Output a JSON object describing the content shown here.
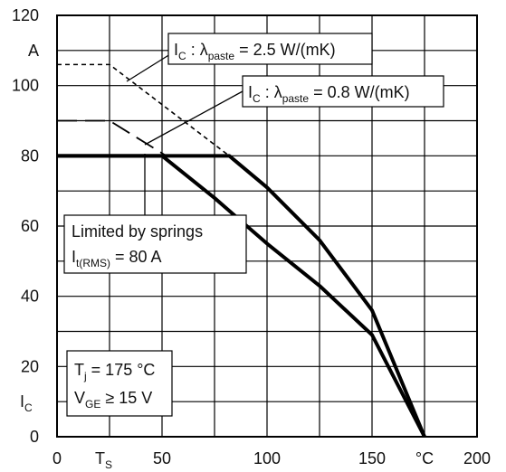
{
  "chart_data": {
    "type": "line",
    "xlim": [
      0,
      200
    ],
    "ylim": [
      0,
      120
    ],
    "x_ticks": [
      "0",
      "50",
      "100",
      "150",
      "200"
    ],
    "y_ticks": [
      "0",
      "20",
      "40",
      "60",
      "80",
      "100",
      "120"
    ],
    "x_axis_symbol": "T",
    "x_axis_symbol_sub": "S",
    "x_axis_unit": "°C",
    "y_axis_symbol": "I",
    "y_axis_symbol_sub": "C",
    "y_axis_unit": "A",
    "grid": true,
    "series": [
      {
        "kind": "limit_thick",
        "points": [
          [
            0,
            80
          ],
          [
            82,
            80
          ],
          [
            100,
            71
          ],
          [
            125,
            56
          ],
          [
            150,
            36
          ],
          [
            175,
            0
          ]
        ]
      },
      {
        "kind": "limit_thick",
        "points": [
          [
            0,
            80
          ],
          [
            50,
            80
          ],
          [
            75,
            68
          ],
          [
            100,
            55
          ],
          [
            125,
            43
          ],
          [
            150,
            29
          ],
          [
            175,
            0
          ]
        ]
      },
      {
        "kind": "dashed_short",
        "points": [
          [
            0,
            106
          ],
          [
            25,
            106
          ],
          [
            82,
            80
          ]
        ]
      },
      {
        "kind": "dashed_long",
        "points": [
          [
            0,
            90
          ],
          [
            25,
            90
          ],
          [
            52,
            80
          ]
        ]
      }
    ],
    "annotations": [
      {
        "id": "paste25",
        "main": "I",
        "main_sub": "C",
        "sep": " : λ",
        "param_sub": "paste",
        "value": " = 2.5 W/(mK)"
      },
      {
        "id": "paste08",
        "main": "I",
        "main_sub": "C",
        "sep": " : λ",
        "param_sub": "paste",
        "value": " = 0.8 W/(mK)"
      },
      {
        "id": "springs",
        "line1": "Limited by springs",
        "line2_main": "I",
        "line2_sub": "t(RMS)",
        "line2_value": " = 80 A"
      },
      {
        "id": "conditions",
        "line1_main": "T",
        "line1_sub": "j",
        "line1_value": " = 175 °C",
        "line2_main": "V",
        "line2_sub": "GE",
        "line2_value": " ≥ 15 V"
      }
    ]
  }
}
